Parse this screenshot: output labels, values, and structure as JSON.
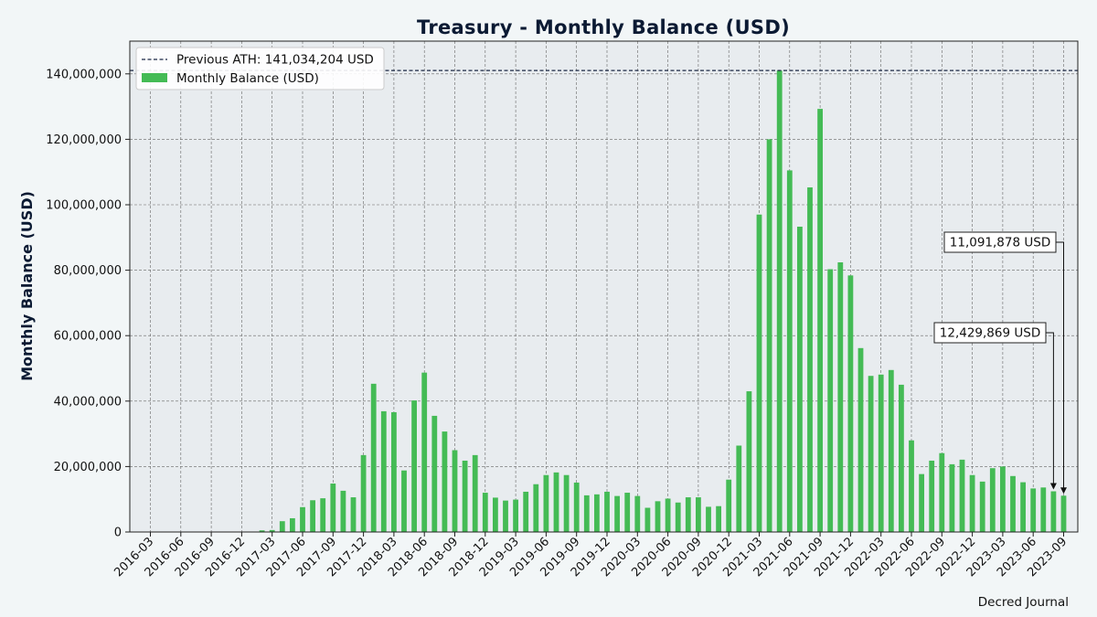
{
  "chart_data": {
    "type": "bar",
    "title": "Treasury - Monthly Balance (USD)",
    "xlabel": "",
    "ylabel": "Monthly Balance (USD)",
    "ylim": [
      0,
      150000000
    ],
    "y_ticks": [
      0,
      20000000,
      40000000,
      60000000,
      80000000,
      100000000,
      120000000,
      140000000
    ],
    "y_tick_labels": [
      "0",
      "20,000,000",
      "40,000,000",
      "60,000,000",
      "80,000,000",
      "100,000,000",
      "120,000,000",
      "140,000,000"
    ],
    "x_tick_labels": [
      "2016-03",
      "2016-06",
      "2016-09",
      "2016-12",
      "2017-03",
      "2017-06",
      "2017-09",
      "2017-12",
      "2018-03",
      "2018-06",
      "2018-09",
      "2018-12",
      "2019-03",
      "2019-06",
      "2019-09",
      "2019-12",
      "2020-03",
      "2020-06",
      "2020-09",
      "2020-12",
      "2021-03",
      "2021-06",
      "2021-09",
      "2021-12",
      "2022-03",
      "2022-06",
      "2022-09",
      "2022-12",
      "2023-03",
      "2023-06",
      "2023-09"
    ],
    "categories": [
      "2017-02",
      "2017-03",
      "2017-04",
      "2017-05",
      "2017-06",
      "2017-07",
      "2017-08",
      "2017-09",
      "2017-10",
      "2017-11",
      "2017-12",
      "2018-01",
      "2018-02",
      "2018-03",
      "2018-04",
      "2018-05",
      "2018-06",
      "2018-07",
      "2018-08",
      "2018-09",
      "2018-10",
      "2018-11",
      "2018-12",
      "2019-01",
      "2019-02",
      "2019-03",
      "2019-04",
      "2019-05",
      "2019-06",
      "2019-07",
      "2019-08",
      "2019-09",
      "2019-10",
      "2019-11",
      "2019-12",
      "2020-01",
      "2020-02",
      "2020-03",
      "2020-04",
      "2020-05",
      "2020-06",
      "2020-07",
      "2020-08",
      "2020-09",
      "2020-10",
      "2020-11",
      "2020-12",
      "2021-01",
      "2021-02",
      "2021-03",
      "2021-04",
      "2021-05",
      "2021-06",
      "2021-07",
      "2021-08",
      "2021-09",
      "2021-10",
      "2021-11",
      "2021-12",
      "2022-01",
      "2022-02",
      "2022-03",
      "2022-04",
      "2022-05",
      "2022-06",
      "2022-07",
      "2022-08",
      "2022-09",
      "2022-10",
      "2022-11",
      "2022-12",
      "2023-01",
      "2023-02",
      "2023-03",
      "2023-04",
      "2023-05",
      "2023-06",
      "2023-07",
      "2023-08",
      "2023-09"
    ],
    "series": [
      {
        "name": "Monthly Balance (USD)",
        "color": "#44bb55",
        "values": [
          500000,
          600000,
          3300000,
          4200000,
          7600000,
          9700000,
          10300000,
          14800000,
          12600000,
          10600000,
          23500000,
          45300000,
          36900000,
          36600000,
          18800000,
          40200000,
          48700000,
          35500000,
          30700000,
          25000000,
          21800000,
          23500000,
          12000000,
          10500000,
          9600000,
          9900000,
          12300000,
          14600000,
          17400000,
          18200000,
          17400000,
          15100000,
          11200000,
          11500000,
          12300000,
          11000000,
          12000000,
          11000000,
          7400000,
          9400000,
          10200000,
          9000000,
          10600000,
          10600000,
          7700000,
          7900000,
          16000000,
          26400000,
          43000000,
          97000000,
          120000000,
          141000000,
          110500000,
          93300000,
          105300000,
          129300000,
          80300000,
          82400000,
          78400000,
          56200000,
          47700000,
          48100000,
          49500000,
          45000000,
          28000000,
          17700000,
          21800000,
          24100000,
          20700000,
          22100000,
          17400000,
          15400000,
          19500000,
          20000000,
          17100000,
          15200000,
          13300000,
          13600000,
          12429869,
          11091878
        ]
      }
    ],
    "reference_line": {
      "label": "Previous ATH: 141,034,204 USD",
      "value": 141034204,
      "color": "#1a2744",
      "style": "dashed"
    },
    "annotations": [
      {
        "text": "11,091,878 USD",
        "category": "2023-09",
        "value": 11091878
      },
      {
        "text": "12,429,869 USD",
        "category": "2023-08",
        "value": 12429869
      }
    ],
    "legend": {
      "placement": "top-left",
      "entries": [
        "Previous ATH: 141,034,204 USD",
        "Monthly Balance (USD)"
      ]
    },
    "grid": true,
    "credit": "Decred Journal",
    "colors": {
      "background": "#f2f6f7",
      "plot_background": "#e8ecef",
      "grid": "#666666",
      "title": "#0b1a33"
    }
  }
}
